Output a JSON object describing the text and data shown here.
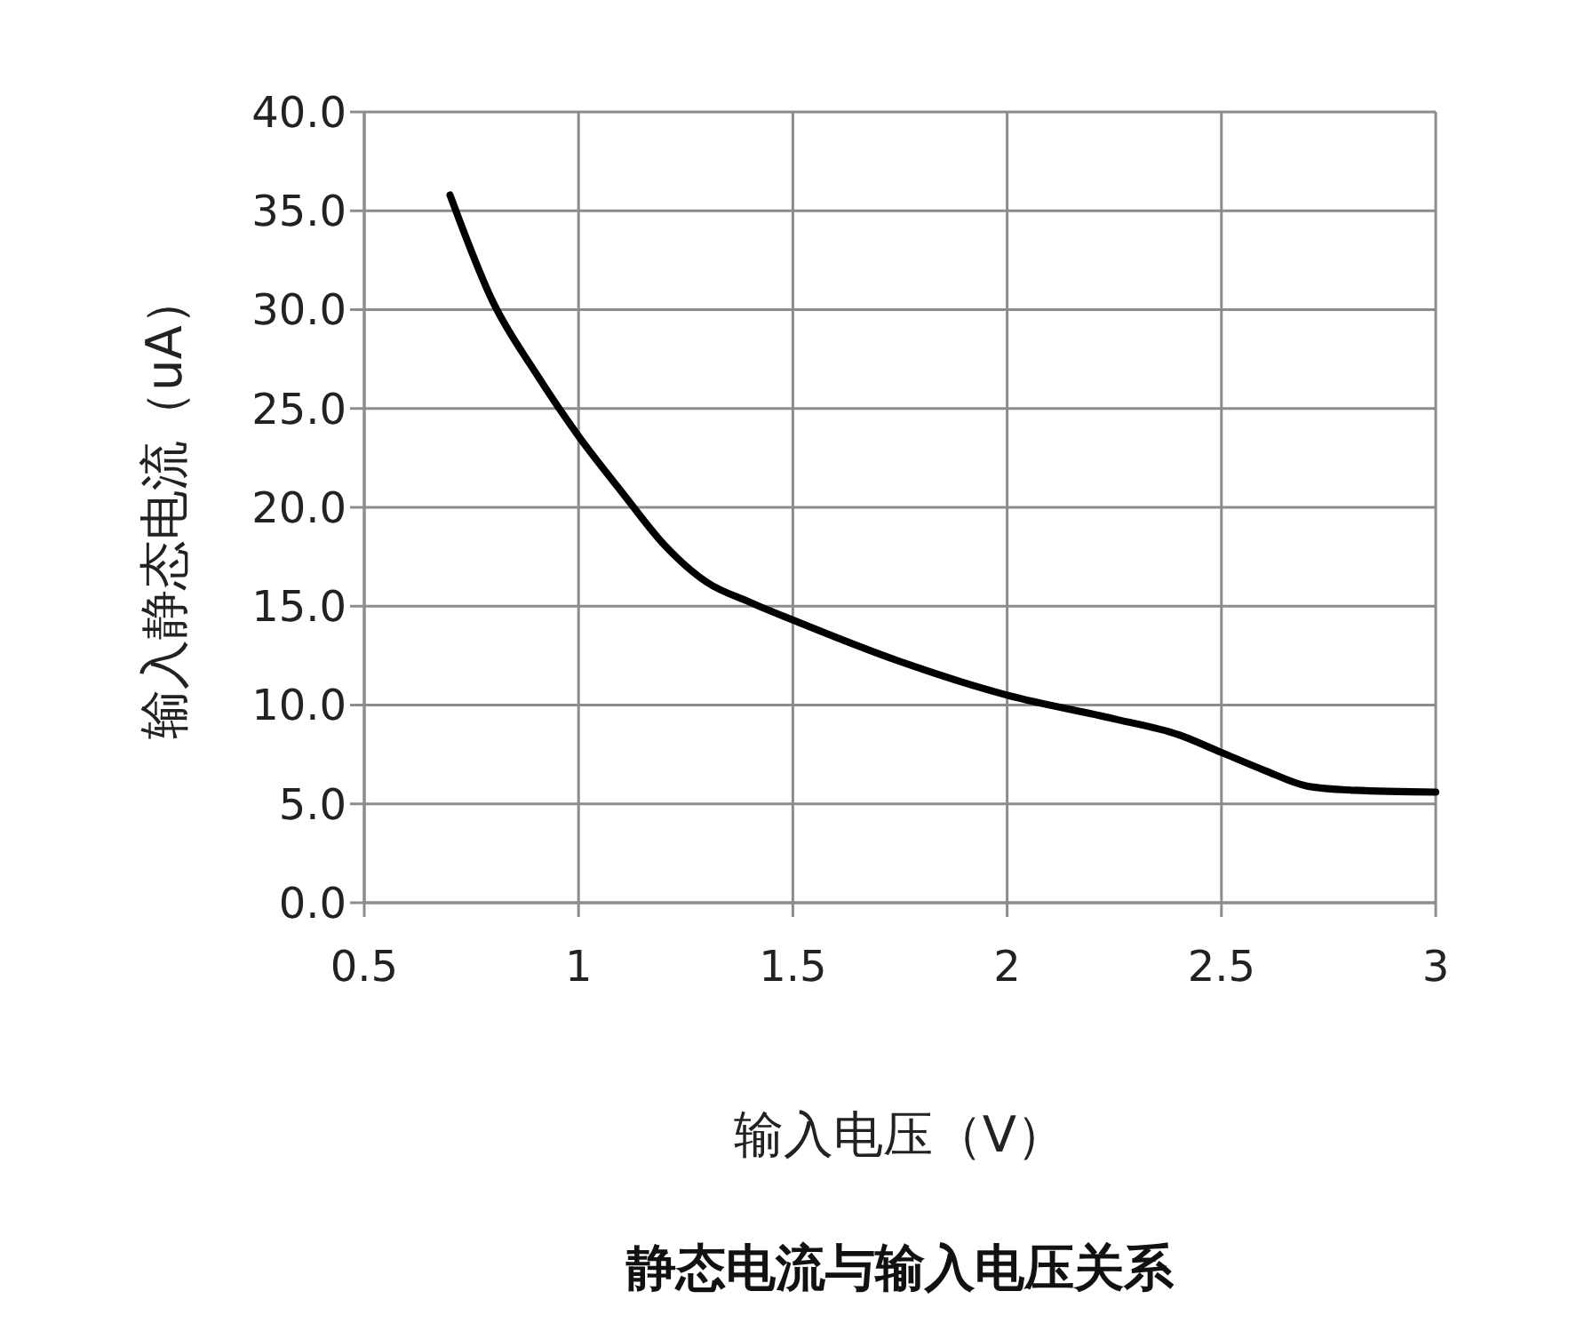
{
  "chart_data": {
    "type": "line",
    "title": "静态电流与输入电压关系",
    "xlabel": "输入电压（V）",
    "ylabel": "输入静态电流（uA）",
    "x": [
      0.7,
      0.8,
      0.9,
      1.0,
      1.1,
      1.2,
      1.3,
      1.4,
      1.5,
      1.75,
      2.0,
      2.25,
      2.4,
      2.5,
      2.6,
      2.7,
      2.8,
      3.0
    ],
    "series": [
      {
        "color": "#000000",
        "values": [
          35.8,
          30.4,
          26.8,
          23.6,
          20.8,
          18.1,
          16.2,
          15.2,
          14.3,
          12.2,
          10.5,
          9.3,
          8.5,
          7.6,
          6.7,
          5.9,
          5.7,
          5.6
        ]
      }
    ],
    "xlim": [
      0.5,
      3
    ],
    "xticks": [
      0.5,
      1,
      1.5,
      2,
      2.5,
      3
    ],
    "ylim": [
      0,
      40
    ],
    "yticks": [
      {
        "value": 0,
        "label": "0.0"
      },
      {
        "value": 5,
        "label": "5.0"
      },
      {
        "value": 10,
        "label": "10.0"
      },
      {
        "value": 15,
        "label": "15.0"
      },
      {
        "value": 20,
        "label": "20.0"
      },
      {
        "value": 25,
        "label": "25.0"
      },
      {
        "value": 30,
        "label": "30.0"
      },
      {
        "value": 35,
        "label": "35.0"
      },
      {
        "value": 40,
        "label": "40.0"
      }
    ],
    "grid": true,
    "marker": "none",
    "line_style": "solid"
  }
}
